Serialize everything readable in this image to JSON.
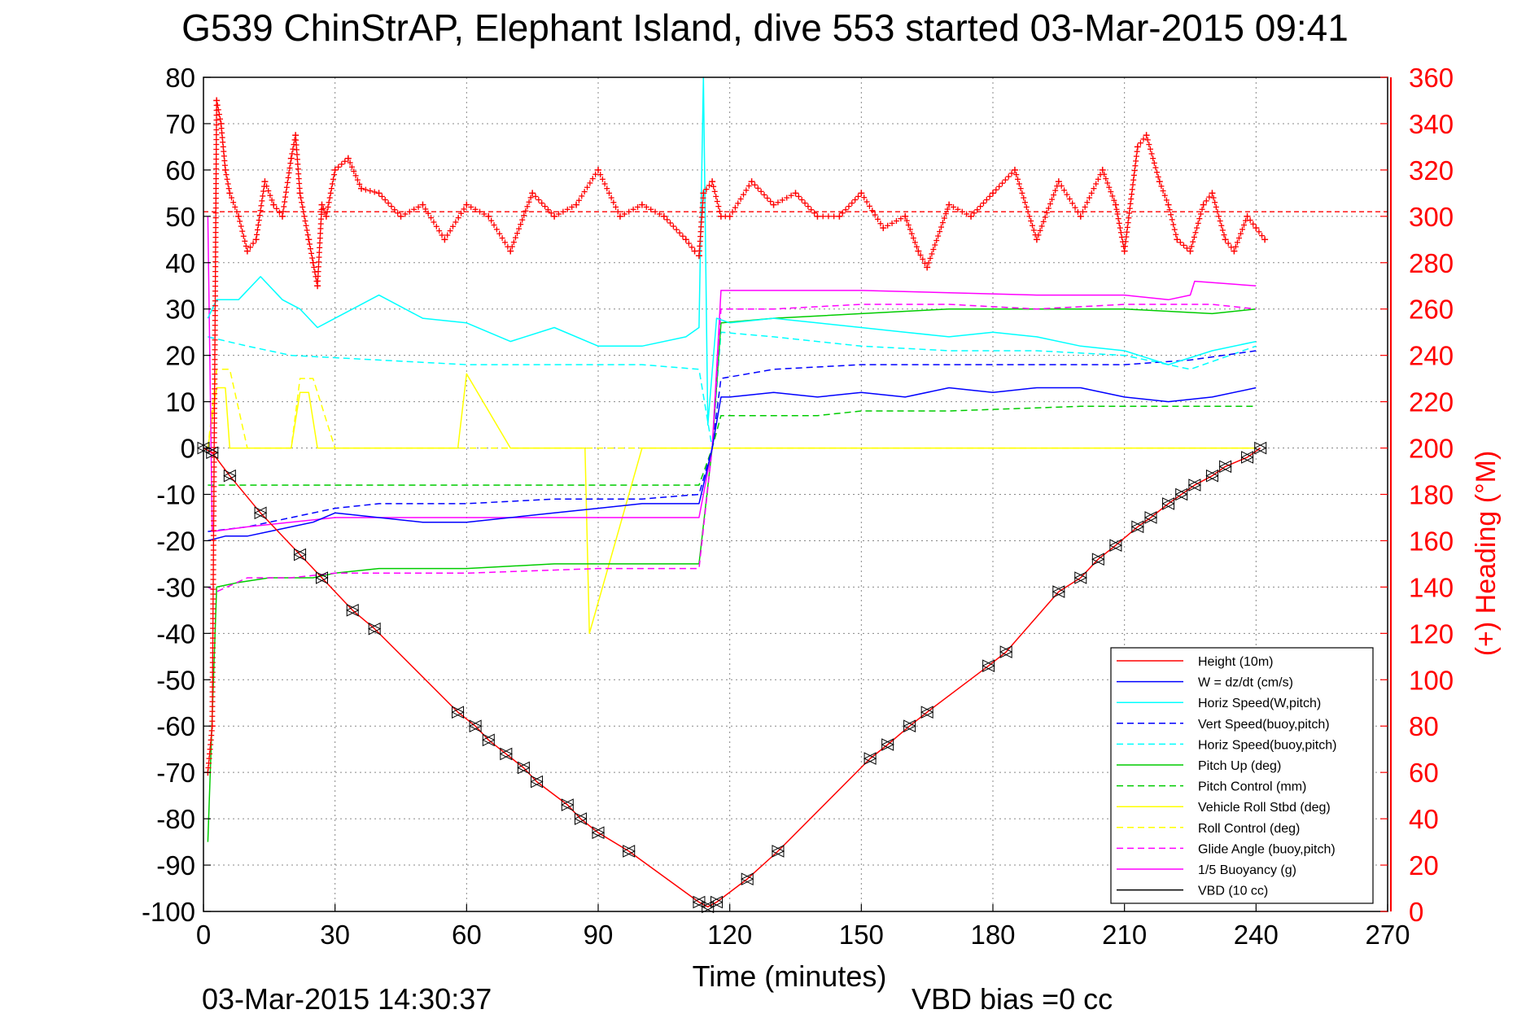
{
  "figure": {
    "title": "G539 ChinStrAP, Elephant Island, dive 553 started 03-Mar-2015 09:41",
    "timestamp": "03-Mar-2015 14:30:37",
    "footer_note": "VBD bias =0 cc"
  },
  "chart_data": {
    "type": "line",
    "title": "G539 ChinStrAP, Elephant Island, dive 553 started 03-Mar-2015 09:41",
    "xlabel": "Time (minutes)",
    "ylabel": "",
    "y2label": "(+) Heading (°M)",
    "xlim": [
      0,
      270
    ],
    "ylim": [
      -100,
      80
    ],
    "y2lim": [
      0,
      360
    ],
    "xticks": [
      0,
      30,
      60,
      90,
      120,
      150,
      180,
      210,
      240,
      270
    ],
    "yticks": [
      80,
      70,
      60,
      50,
      40,
      30,
      20,
      10,
      0,
      -10,
      -20,
      -30,
      -40,
      -50,
      -60,
      -70,
      -80,
      -90,
      -100
    ],
    "y2ticks": [
      360,
      340,
      320,
      300,
      280,
      260,
      240,
      220,
      200,
      180,
      160,
      140,
      120,
      100,
      80,
      60,
      40,
      20,
      0
    ],
    "grid": true,
    "legend_position": "bottom-right",
    "series": [
      {
        "name": "Height (10m)",
        "color": "#ff0000",
        "style": "solid",
        "marker": "triangles",
        "x": [
          0,
          2,
          6,
          13,
          22,
          27,
          34,
          39,
          58,
          62,
          65,
          69,
          73,
          76,
          83,
          86,
          90,
          97,
          113,
          115,
          117,
          124,
          131,
          152,
          156,
          161,
          165,
          179,
          183,
          195,
          200,
          204,
          208,
          213,
          216,
          220,
          223,
          226,
          230,
          233,
          238,
          241
        ],
        "y": [
          0,
          -1,
          -6,
          -14,
          -23,
          -28,
          -35,
          -39,
          -57,
          -60,
          -63,
          -66,
          -69,
          -72,
          -77,
          -80,
          -83,
          -87,
          -98,
          -99,
          -98,
          -93,
          -87,
          -67,
          -64,
          -60,
          -57,
          -47,
          -44,
          -31,
          -28,
          -24,
          -21,
          -17,
          -15,
          -12,
          -10,
          -8,
          -6,
          -4,
          -2,
          0
        ]
      },
      {
        "name": "W = dz/dt (cm/s)",
        "color": "#0000ff",
        "style": "solid",
        "x": [
          1,
          5,
          10,
          15,
          20,
          25,
          30,
          40,
          50,
          60,
          70,
          80,
          90,
          100,
          113,
          116,
          118,
          120,
          130,
          140,
          150,
          160,
          170,
          180,
          190,
          200,
          210,
          220,
          230,
          240
        ],
        "y": [
          -20,
          -19,
          -19,
          -18,
          -17,
          -16,
          -14,
          -15,
          -16,
          -16,
          -15,
          -14,
          -13,
          -12,
          -12,
          0,
          11,
          11,
          12,
          11,
          12,
          11,
          13,
          12,
          13,
          13,
          11,
          10,
          11,
          13
        ]
      },
      {
        "name": "Horiz Speed(W,pitch)",
        "color": "#00ffff",
        "style": "solid",
        "x": [
          1,
          3,
          8,
          13,
          18,
          22,
          26,
          30,
          40,
          50,
          60,
          70,
          80,
          90,
          100,
          110,
          113,
          114,
          115,
          117,
          120,
          130,
          140,
          150,
          160,
          170,
          180,
          190,
          200,
          210,
          220,
          230,
          240
        ],
        "y": [
          28,
          32,
          32,
          37,
          32,
          30,
          26,
          28,
          33,
          28,
          27,
          23,
          26,
          22,
          22,
          24,
          26,
          80,
          5,
          28,
          27,
          28,
          27,
          26,
          25,
          24,
          25,
          24,
          22,
          21,
          18,
          21,
          23
        ]
      },
      {
        "name": "Vert Speed(buoy,pitch)",
        "color": "#0000ff",
        "style": "dashed",
        "x": [
          1,
          10,
          20,
          30,
          40,
          60,
          80,
          100,
          113,
          116,
          118,
          130,
          150,
          170,
          190,
          210,
          225,
          240
        ],
        "y": [
          -18,
          -17,
          -15,
          -13,
          -12,
          -12,
          -11,
          -11,
          -10,
          0,
          15,
          17,
          18,
          18,
          18,
          18,
          19,
          21
        ]
      },
      {
        "name": "Horiz Speed(buoy,pitch)",
        "color": "#00ffff",
        "style": "dashed",
        "x": [
          1,
          10,
          20,
          40,
          60,
          80,
          100,
          113,
          116,
          118,
          130,
          150,
          170,
          190,
          210,
          225,
          240
        ],
        "y": [
          24,
          22,
          20,
          19,
          18,
          18,
          18,
          17,
          0,
          25,
          24,
          22,
          21,
          21,
          20,
          17,
          22
        ]
      },
      {
        "name": "Pitch Up (deg)",
        "color": "#00cc00",
        "style": "solid",
        "x": [
          1,
          3,
          8,
          15,
          25,
          30,
          40,
          60,
          80,
          100,
          113,
          116,
          118,
          130,
          150,
          170,
          190,
          210,
          230,
          240
        ],
        "y": [
          -85,
          -30,
          -29,
          -28,
          -28,
          -27,
          -26,
          -26,
          -25,
          -25,
          -25,
          0,
          27,
          28,
          29,
          30,
          30,
          30,
          29,
          30
        ]
      },
      {
        "name": "Pitch Control (mm)",
        "color": "#00cc00",
        "style": "dashed",
        "x": [
          1,
          113,
          116,
          118,
          130,
          140,
          150,
          170,
          200,
          240
        ],
        "y": [
          -8,
          -8,
          0,
          7,
          7,
          7,
          8,
          8,
          9,
          9
        ]
      },
      {
        "name": "Vehicle Roll Stbd (deg)",
        "color": "#ffff00",
        "style": "solid",
        "x": [
          1,
          3,
          5,
          6,
          7,
          10,
          20,
          22,
          24,
          26,
          28,
          40,
          58,
          60,
          70,
          87,
          88,
          100,
          113,
          118,
          130,
          150,
          180,
          200,
          210,
          225,
          240
        ],
        "y": [
          0,
          13,
          13,
          0,
          0,
          0,
          0,
          12,
          12,
          0,
          0,
          0,
          0,
          16,
          0,
          0,
          -40,
          0,
          0,
          0,
          0,
          0,
          0,
          0,
          0,
          0,
          0
        ]
      },
      {
        "name": "Roll Control (deg)",
        "color": "#ffff00",
        "style": "dashed",
        "x": [
          1,
          3,
          6,
          10,
          20,
          22,
          25,
          30,
          60,
          110,
          113,
          118,
          240
        ],
        "y": [
          0,
          17,
          17,
          0,
          0,
          15,
          15,
          0,
          0,
          0,
          0,
          0,
          0
        ]
      },
      {
        "name": "Glide Angle (buoy,pitch)",
        "color": "#ff00ff",
        "style": "dashed",
        "x": [
          1,
          3,
          10,
          20,
          30,
          60,
          90,
          113,
          116,
          118,
          130,
          150,
          170,
          190,
          210,
          230,
          240
        ],
        "y": [
          -30,
          -31,
          -28,
          -28,
          -27,
          -27,
          -26,
          -26,
          0,
          30,
          30,
          31,
          31,
          30,
          31,
          31,
          30
        ]
      },
      {
        "name": "1/5 Buoyancy (g)",
        "color": "#ff00ff",
        "style": "solid",
        "x": [
          1,
          2,
          10,
          30,
          60,
          90,
          113,
          116,
          118,
          150,
          190,
          210,
          220,
          225,
          226,
          240
        ],
        "y": [
          50,
          -18,
          -17,
          -15,
          -15,
          -15,
          -15,
          0,
          34,
          34,
          33,
          33,
          32,
          33,
          36,
          35
        ]
      },
      {
        "name": "VBD (10 cc)",
        "color": "#000000",
        "style": "solid",
        "x": [
          1,
          2,
          113,
          114,
          117,
          118,
          150,
          180,
          190,
          225,
          226,
          240
        ],
        "y": [
          -8,
          -9,
          -9,
          -9,
          5,
          14,
          14,
          14,
          14,
          14,
          18,
          18
        ]
      }
    ],
    "heading_series": {
      "name": "(+) Heading",
      "axis": "right",
      "color": "#ff0000",
      "marker": "+",
      "x": [
        1,
        2,
        3,
        4,
        5,
        6,
        8,
        10,
        12,
        14,
        16,
        18,
        20,
        21,
        22,
        24,
        25,
        26,
        27,
        28,
        30,
        33,
        36,
        40,
        45,
        50,
        55,
        60,
        65,
        70,
        75,
        80,
        85,
        90,
        95,
        100,
        105,
        110,
        112,
        113,
        114,
        116,
        118,
        120,
        125,
        130,
        135,
        140,
        145,
        150,
        155,
        160,
        163,
        165,
        170,
        175,
        180,
        185,
        190,
        195,
        200,
        205,
        208,
        210,
        213,
        215,
        218,
        220,
        222,
        225,
        228,
        230,
        233,
        235,
        238,
        240,
        242
      ],
      "y": [
        60,
        80,
        350,
        340,
        320,
        310,
        300,
        285,
        290,
        315,
        305,
        300,
        325,
        335,
        310,
        290,
        280,
        270,
        305,
        300,
        320,
        325,
        312,
        310,
        300,
        305,
        290,
        305,
        300,
        285,
        310,
        300,
        305,
        320,
        300,
        305,
        300,
        290,
        285,
        283,
        310,
        315,
        300,
        300,
        315,
        305,
        310,
        300,
        300,
        310,
        295,
        300,
        285,
        278,
        305,
        300,
        310,
        320,
        290,
        315,
        300,
        320,
        305,
        285,
        330,
        335,
        315,
        305,
        290,
        285,
        305,
        310,
        290,
        285,
        300,
        295,
        290
      ]
    },
    "heading_reference": {
      "value": 302,
      "axis": "right",
      "color": "#ff0000",
      "style": "dashed"
    }
  }
}
